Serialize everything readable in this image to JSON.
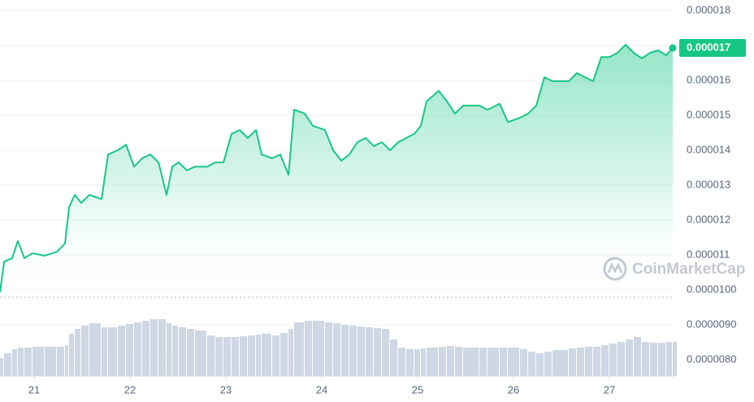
{
  "chart_data": {
    "type": "line",
    "watermark": "CoinMarketCap",
    "color": "#16c784",
    "grid": true,
    "x": [
      20.644,
      20.686,
      20.771,
      20.83,
      20.898,
      20.983,
      21.11,
      21.237,
      21.322,
      21.364,
      21.424,
      21.491,
      21.576,
      21.703,
      21.771,
      21.873,
      21.958,
      22.042,
      22.127,
      22.212,
      22.297,
      22.381,
      22.441,
      22.508,
      22.593,
      22.678,
      22.805,
      22.89,
      22.975,
      23.059,
      23.144,
      23.229,
      23.314,
      23.373,
      23.483,
      23.568,
      23.653,
      23.712,
      23.822,
      23.907,
      24.034,
      24.119,
      24.203,
      24.288,
      24.373,
      24.458,
      24.542,
      24.627,
      24.712,
      24.797,
      24.881,
      24.966,
      25.034,
      25.093,
      25.22,
      25.305,
      25.39,
      25.475,
      25.644,
      25.729,
      25.856,
      25.941,
      26.068,
      26.153,
      26.237,
      26.322,
      26.407,
      26.576,
      26.661,
      26.746,
      26.831,
      26.915,
      27.0,
      27.085,
      27.169,
      27.254,
      27.339,
      27.424,
      27.508,
      27.593,
      27.661
    ],
    "values": [
      9.93e-06,
      1.081e-05,
      1.091e-05,
      1.14e-05,
      1.091e-05,
      1.105e-05,
      1.098e-05,
      1.109e-05,
      1.133e-05,
      1.237e-05,
      1.272e-05,
      1.249e-05,
      1.272e-05,
      1.26e-05,
      1.388e-05,
      1.4e-05,
      1.416e-05,
      1.353e-05,
      1.377e-05,
      1.388e-05,
      1.365e-05,
      1.272e-05,
      1.353e-05,
      1.365e-05,
      1.342e-05,
      1.353e-05,
      1.353e-05,
      1.365e-05,
      1.365e-05,
      1.447e-05,
      1.458e-05,
      1.435e-05,
      1.458e-05,
      1.388e-05,
      1.377e-05,
      1.388e-05,
      1.33e-05,
      1.516e-05,
      1.505e-05,
      1.47e-05,
      1.458e-05,
      1.4e-05,
      1.37e-05,
      1.388e-05,
      1.423e-05,
      1.435e-05,
      1.412e-05,
      1.423e-05,
      1.4e-05,
      1.423e-05,
      1.435e-05,
      1.447e-05,
      1.47e-05,
      1.54e-05,
      1.57e-05,
      1.54e-05,
      1.505e-05,
      1.528e-05,
      1.528e-05,
      1.516e-05,
      1.533e-05,
      1.481e-05,
      1.493e-05,
      1.505e-05,
      1.528e-05,
      1.609e-05,
      1.598e-05,
      1.598e-05,
      1.621e-05,
      1.609e-05,
      1.598e-05,
      1.667e-05,
      1.667e-05,
      1.679e-05,
      1.702e-05,
      1.679e-05,
      1.663e-05,
      1.679e-05,
      1.686e-05,
      1.672e-05,
      1.693e-05
    ],
    "volume": {
      "color": "#cfd6e4",
      "ylim": [
        0,
        100
      ],
      "values": [
        22,
        28,
        33,
        35,
        35,
        36,
        36,
        36,
        38,
        52,
        58,
        62,
        65,
        60,
        60,
        62,
        64,
        66,
        68,
        70,
        70,
        65,
        62,
        60,
        58,
        56,
        50,
        48,
        48,
        48,
        49,
        50,
        51,
        52,
        50,
        53,
        58,
        66,
        68,
        68,
        66,
        65,
        63,
        62,
        61,
        60,
        59,
        58,
        45,
        35,
        33,
        33,
        34,
        35,
        36,
        37,
        36,
        35,
        35,
        35,
        35,
        35,
        33,
        30,
        28,
        30,
        32,
        34,
        35,
        36,
        36,
        38,
        40,
        42,
        45,
        48,
        42,
        41,
        41,
        42,
        42
      ]
    },
    "last_price": {
      "value": 1.693e-05,
      "label": "0.000017"
    },
    "xlim": [
      20.644,
      27.661
    ],
    "xticks": [
      21,
      22,
      23,
      24,
      25,
      26,
      27
    ],
    "ylim": [
      7.535e-06,
      1.8302e-05
    ],
    "yticks": [
      1.8e-05,
      1.7e-05,
      1.6e-05,
      1.5e-05,
      1.4e-05,
      1.3e-05,
      1.2e-05,
      1.1e-05,
      {
        "value": 1e-05,
        "label": "0.0000100"
      },
      {
        "value": 9e-06,
        "label": "0.0000090"
      },
      {
        "value": 8e-06,
        "label": "0.0000080"
      }
    ]
  }
}
